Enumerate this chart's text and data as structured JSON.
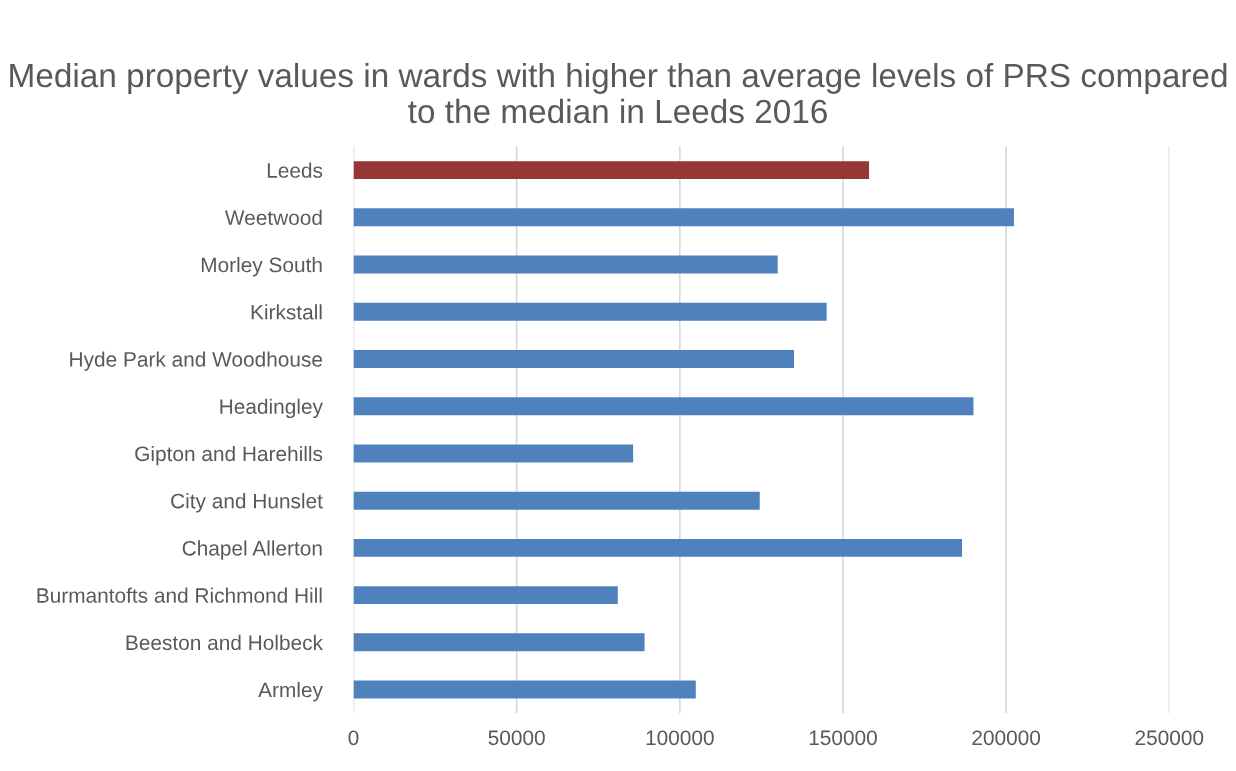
{
  "chart_data": {
    "type": "bar",
    "orientation": "horizontal",
    "title": "Median property values in wards with higher than average levels of PRS compared to the median in Leeds 2016",
    "categories": [
      "Leeds",
      "Weetwood",
      "Morley South",
      "Kirkstall",
      "Hyde Park and Woodhouse",
      "Headingley",
      "Gipton and Harehills",
      "City and Hunslet",
      "Chapel Allerton",
      "Burmantofts and Richmond Hill",
      "Beeston and Holbeck",
      "Armley"
    ],
    "values": [
      158000,
      202400,
      130000,
      145000,
      135000,
      190000,
      85700,
      124500,
      186500,
      81000,
      89200,
      104900
    ],
    "colors": [
      "#953735",
      "#4f81bd",
      "#4f81bd",
      "#4f81bd",
      "#4f81bd",
      "#4f81bd",
      "#4f81bd",
      "#4f81bd",
      "#4f81bd",
      "#4f81bd",
      "#4f81bd",
      "#4f81bd"
    ],
    "xlim": [
      0,
      250000
    ],
    "xticks": [
      0,
      50000,
      100000,
      150000,
      200000,
      250000
    ],
    "grid": "x"
  }
}
